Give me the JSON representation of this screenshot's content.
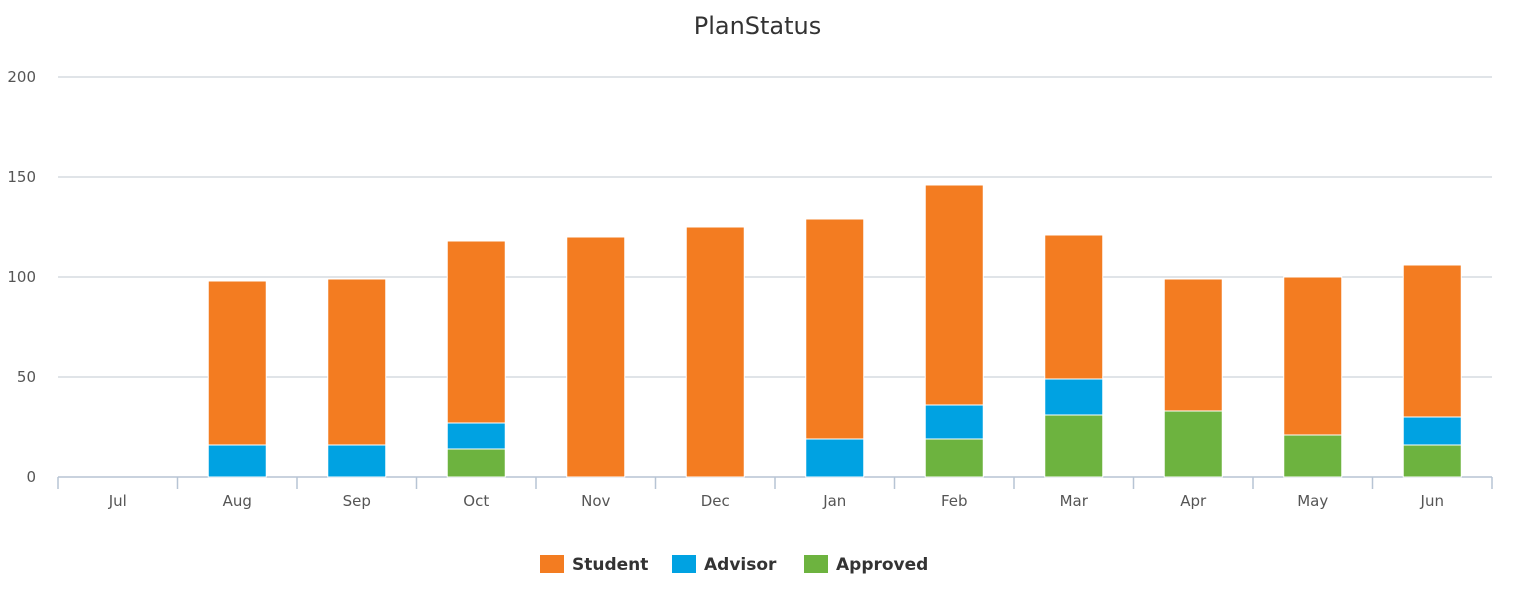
{
  "chart_data": {
    "type": "bar",
    "stacked": true,
    "title": "PlanStatus",
    "xlabel": "",
    "ylabel": "",
    "ylim": [
      0,
      200
    ],
    "yticks": [
      0,
      50,
      100,
      150,
      200
    ],
    "grid": true,
    "legend_position": "bottom",
    "categories": [
      "Jul",
      "Aug",
      "Sep",
      "Oct",
      "Nov",
      "Dec",
      "Jan",
      "Feb",
      "Mar",
      "Apr",
      "May",
      "Jun"
    ],
    "series": [
      {
        "name": "Approved",
        "color": "#6db33f",
        "values": [
          0,
          0,
          0,
          14,
          0,
          0,
          0,
          19,
          31,
          33,
          21,
          16
        ]
      },
      {
        "name": "Advisor",
        "color": "#00a2e2",
        "values": [
          0,
          16,
          16,
          13,
          0,
          0,
          19,
          17,
          18,
          0,
          0,
          14
        ]
      },
      {
        "name": "Student",
        "color": "#f37c21",
        "values": [
          0,
          82,
          83,
          91,
          120,
          125,
          110,
          110,
          72,
          66,
          79,
          76
        ]
      }
    ],
    "legend_order": [
      "Student",
      "Advisor",
      "Approved"
    ]
  }
}
